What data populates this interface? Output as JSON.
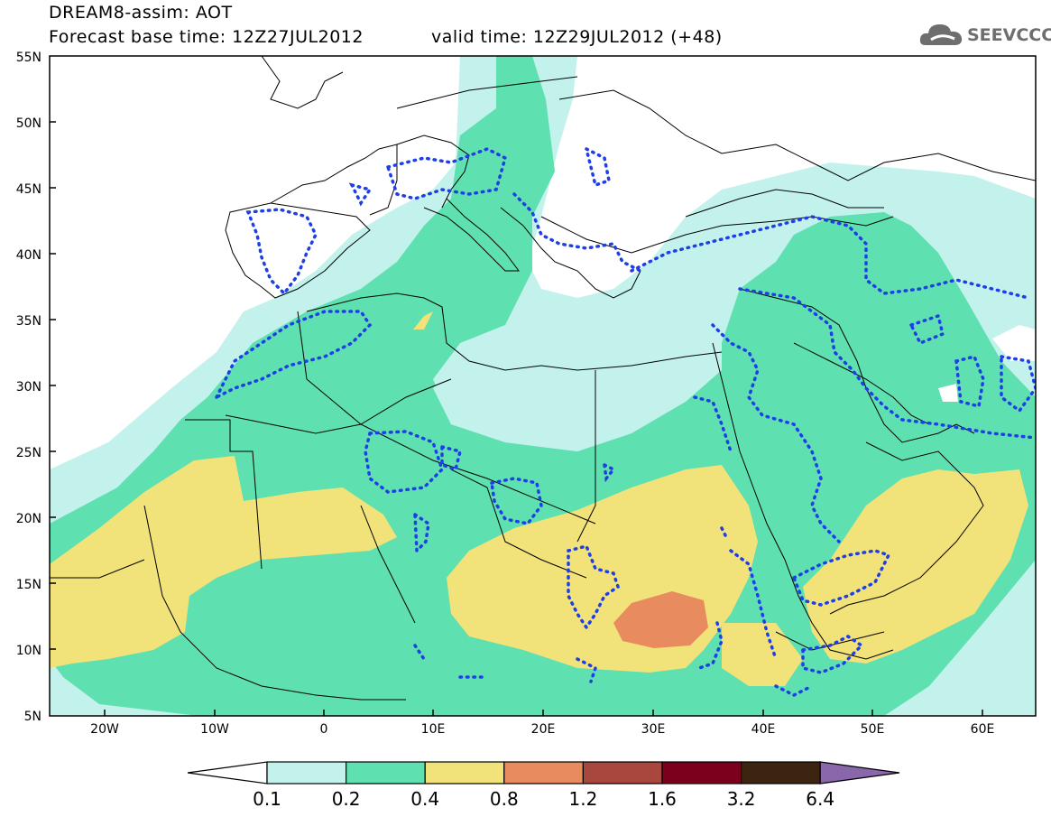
{
  "header": {
    "title": "DREAM8-assim: AOT",
    "base_time": "Forecast base time: 12Z27JUL2012",
    "valid_time": "valid time: 12Z29JUL2012 (+48)"
  },
  "logo": {
    "text": "SEEVCCC",
    "icon": "cloud-icon"
  },
  "map": {
    "lat_labels": [
      "55N",
      "50N",
      "45N",
      "40N",
      "35N",
      "30N",
      "25N",
      "20N",
      "15N",
      "10N",
      "5N"
    ],
    "lon_labels": [
      "20W",
      "10W",
      "0",
      "10E",
      "20E",
      "30E",
      "40E",
      "50E",
      "60E"
    ],
    "colors": {
      "ocean": "#ffffff",
      "land_lines": "#000000",
      "contour_dots": "#1f3fe6"
    }
  },
  "colorbar": {
    "levels": [
      "0.1",
      "0.2",
      "0.4",
      "0.8",
      "1.2",
      "1.6",
      "3.2",
      "6.4"
    ],
    "colors": [
      "#c3f2ec",
      "#5ee0b0",
      "#f1e27a",
      "#e88b5e",
      "#a8473d",
      "#7c001d",
      "#3c2410",
      "#8a66aa"
    ],
    "under_color": "#ffffff"
  }
}
